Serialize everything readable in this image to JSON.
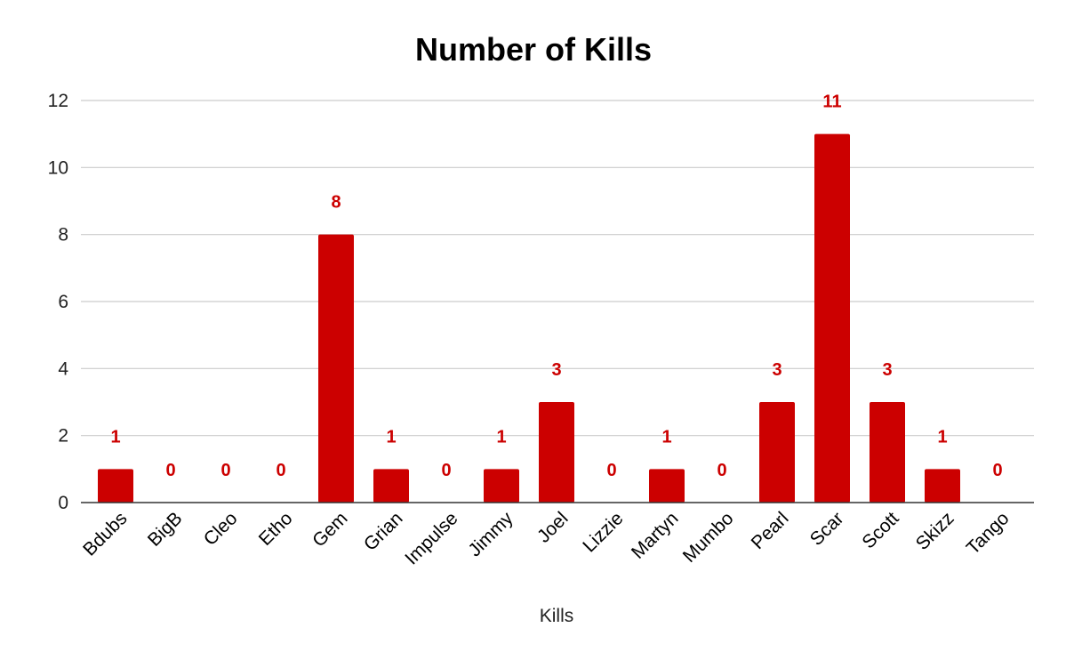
{
  "chart_data": {
    "type": "bar",
    "title": "Number of Kills",
    "xlabel": "Kills",
    "ylabel": "",
    "ylim": [
      0,
      12
    ],
    "yticks": [
      0,
      2,
      4,
      6,
      8,
      10,
      12
    ],
    "grid": true,
    "legend": "none",
    "bar_color": "#cc0000",
    "label_color": "#cc0000",
    "categories": [
      "Bdubs",
      "BigB",
      "Cleo",
      "Etho",
      "Gem",
      "Grian",
      "Impulse",
      "Jimmy",
      "Joel",
      "Lizzie",
      "Martyn",
      "Mumbo",
      "Pearl",
      "Scar",
      "Scott",
      "Skizz",
      "Tango"
    ],
    "values": [
      1,
      0,
      0,
      0,
      8,
      1,
      0,
      1,
      3,
      0,
      1,
      0,
      3,
      11,
      3,
      1,
      0
    ]
  }
}
